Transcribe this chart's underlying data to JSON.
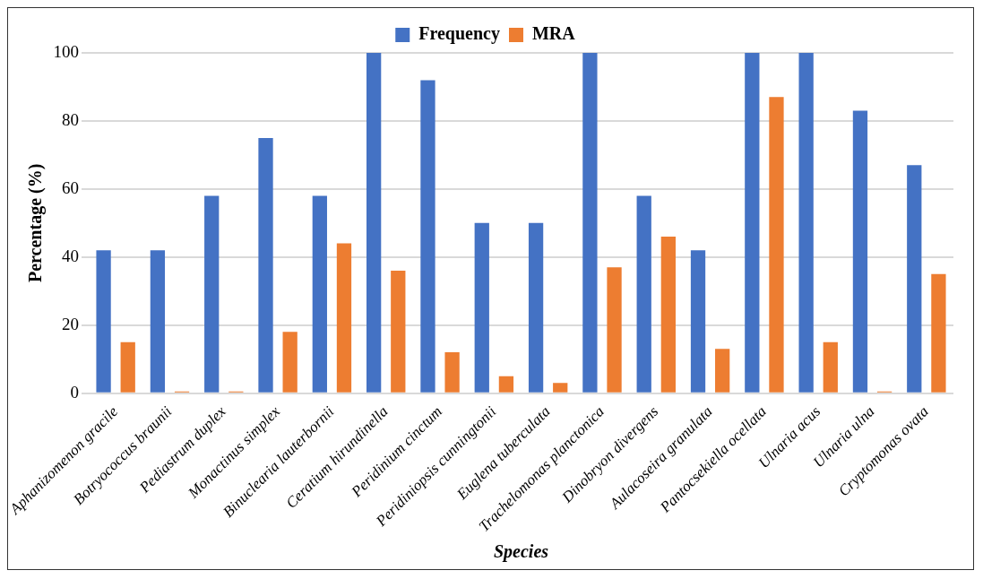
{
  "chart_data": {
    "type": "bar",
    "xlabel": "Species",
    "ylabel": "Percentage (%)",
    "categories": [
      "Aphanizomenon gracile",
      "Botryococcus braunii",
      "Pediastrum duplex",
      "Monactinus simplex",
      "Binuclearia lauterbornii",
      "Ceratium hirundinella",
      "Peridinium cinctum",
      "Peridiniopsis cunningtonii",
      "Euglena tuberculata",
      "Trachelomonas planctonica",
      "Dinobryon divergens",
      "Aulacoseira granulata",
      "Pantocsekiella ocellata",
      "Ulnaria acus",
      "Ulnaria ulna",
      "Cryptomonas ovata"
    ],
    "series": [
      {
        "name": "Frequency",
        "color": "#4472c4",
        "values": [
          42,
          42,
          58,
          75,
          58,
          100,
          92,
          50,
          50,
          100,
          58,
          42,
          100,
          100,
          83,
          67
        ]
      },
      {
        "name": "MRA",
        "color": "#ed7d31",
        "values": [
          15,
          0.5,
          0.5,
          18,
          44,
          36,
          12,
          5,
          3,
          37,
          46,
          13,
          87,
          15,
          0.5,
          35
        ]
      }
    ],
    "ylim": [
      0,
      100
    ],
    "yticks": [
      0,
      20,
      40,
      60,
      80,
      100
    ],
    "grid": "y",
    "legend": "top"
  }
}
